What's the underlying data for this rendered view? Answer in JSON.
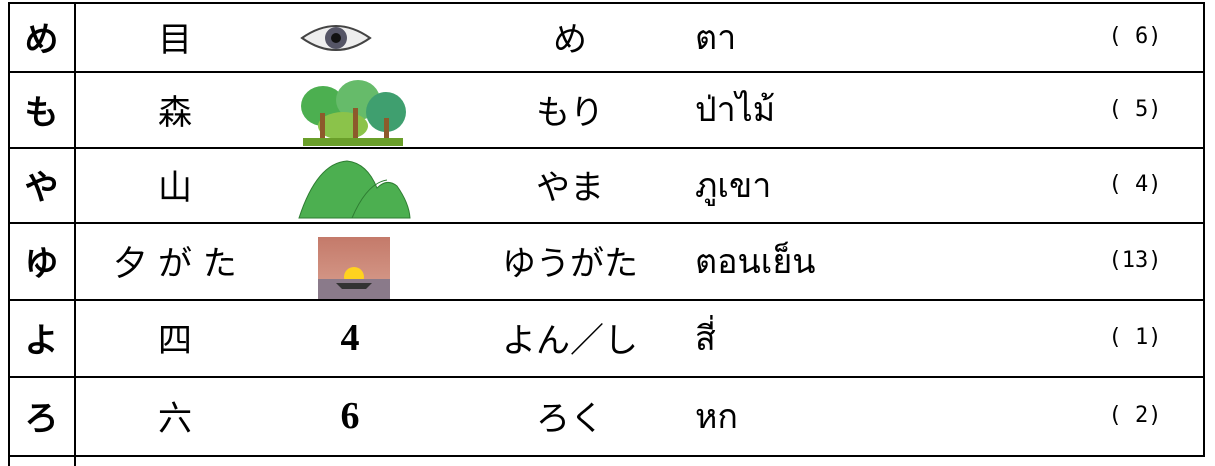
{
  "table": {
    "rows": [
      {
        "kana": "め",
        "kanji": "目",
        "reading": "め",
        "thai": "ตา",
        "count": "( 6)"
      },
      {
        "kana": "も",
        "kanji": "森",
        "reading": "もり",
        "thai": "ป่าไม้",
        "count": "( 5)"
      },
      {
        "kana": "や",
        "kanji": "山",
        "reading": "やま",
        "thai": "ภูเขา",
        "count": "( 4)"
      },
      {
        "kana": "ゆ",
        "kanji": "夕 が た",
        "reading": "ゆうがた",
        "thai": "ตอนเย็น",
        "count": "(13)"
      },
      {
        "kana": "よ",
        "kanji": "四",
        "figure": "4",
        "reading": "よん／し",
        "thai": "สี่",
        "count": "( 1)"
      },
      {
        "kana": "ろ",
        "kanji": "六",
        "figure": "6",
        "reading": "ろく",
        "thai": "หก",
        "count": "( 2)"
      }
    ]
  }
}
